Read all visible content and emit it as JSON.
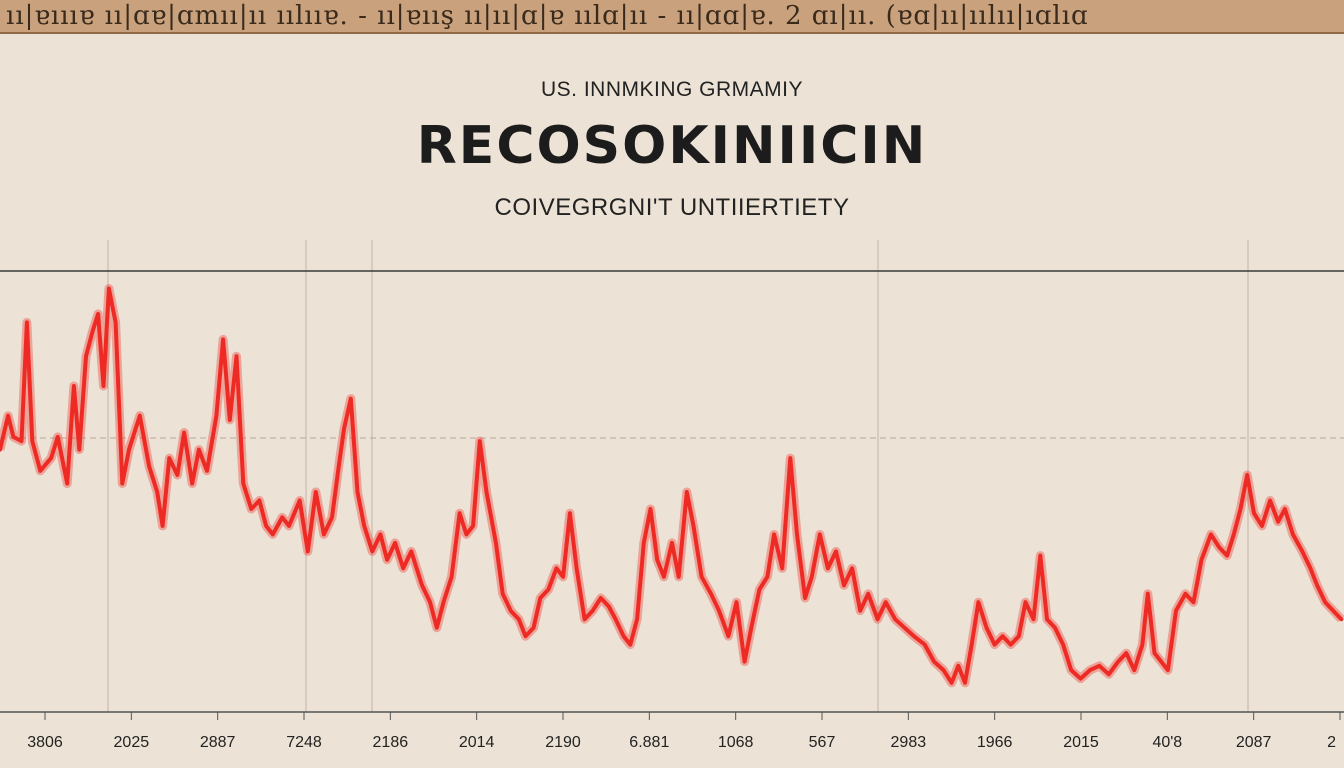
{
  "banner": {
    "text": "ıı|ɐıııɐ ıı|ɑɐ|ɑmıı|ıı ıılııɐ. - ıı|ɐıış ıı|ıı|ɑ|ɐ ıılɑ|ıı - ıı|ɑɑ|ɐ. 2 ɑı|ıı. (ɐɑ|ıı|ıılıı|ıɑlıɑ"
  },
  "supertitle": "US. INNMKING GRMAMIY",
  "title": "RECOSOKINIICIN",
  "subtitle": "COIVEGRGNI'T UNTIIERTIETY",
  "colors": {
    "background": "#ece3d6",
    "banner": "#c9a27d",
    "series": "#ee2a24",
    "axis": "#555555",
    "grid": "#bfb3a3"
  },
  "chart_data": {
    "type": "line",
    "title": "RECOSOKINIICIN",
    "subtitle": "COIVEGRGNI'T UNTIIERTIETY",
    "xlabel": "",
    "ylabel": "",
    "grid": true,
    "x_ticks": [
      "3806",
      "2025",
      "2887",
      "7248",
      "2186",
      "2014",
      "2190",
      "6.881",
      "1068",
      "567",
      "2983",
      "1966",
      "2015",
      "40'8",
      "2087",
      "2"
    ],
    "xlim": [
      0,
      100
    ],
    "ylim": [
      0,
      100
    ],
    "series": [
      {
        "values": [
          [
            0.0,
            60
          ],
          [
            0.6,
            68
          ],
          [
            1.0,
            63
          ],
          [
            1.6,
            62
          ],
          [
            2.0,
            90
          ],
          [
            2.4,
            62
          ],
          [
            3.0,
            55
          ],
          [
            3.8,
            58
          ],
          [
            4.3,
            63
          ],
          [
            5.0,
            52
          ],
          [
            5.5,
            75
          ],
          [
            5.9,
            60
          ],
          [
            6.4,
            82
          ],
          [
            6.9,
            88
          ],
          [
            7.3,
            92
          ],
          [
            7.7,
            75
          ],
          [
            8.1,
            98
          ],
          [
            8.6,
            90
          ],
          [
            9.1,
            52
          ],
          [
            9.6,
            60
          ],
          [
            10.4,
            68
          ],
          [
            11.1,
            56
          ],
          [
            11.7,
            50
          ],
          [
            12.1,
            42
          ],
          [
            12.6,
            58
          ],
          [
            13.2,
            54
          ],
          [
            13.7,
            64
          ],
          [
            14.3,
            52
          ],
          [
            14.8,
            60
          ],
          [
            15.4,
            55
          ],
          [
            16.1,
            68
          ],
          [
            16.6,
            86
          ],
          [
            17.1,
            67
          ],
          [
            17.6,
            82
          ],
          [
            18.1,
            52
          ],
          [
            18.7,
            46
          ],
          [
            19.3,
            48
          ],
          [
            19.8,
            42
          ],
          [
            20.3,
            40
          ],
          [
            21.0,
            44
          ],
          [
            21.5,
            42
          ],
          [
            22.3,
            48
          ],
          [
            22.9,
            36
          ],
          [
            23.5,
            50
          ],
          [
            24.1,
            40
          ],
          [
            24.7,
            44
          ],
          [
            25.2,
            56
          ],
          [
            25.6,
            65
          ],
          [
            26.1,
            72
          ],
          [
            26.6,
            50
          ],
          [
            27.1,
            42
          ],
          [
            27.7,
            36
          ],
          [
            28.3,
            40
          ],
          [
            28.8,
            34
          ],
          [
            29.4,
            38
          ],
          [
            30.0,
            32
          ],
          [
            30.6,
            36
          ],
          [
            31.4,
            28
          ],
          [
            32.0,
            24
          ],
          [
            32.5,
            18
          ],
          [
            33.0,
            24
          ],
          [
            33.6,
            30
          ],
          [
            34.2,
            45
          ],
          [
            34.7,
            40
          ],
          [
            35.2,
            42
          ],
          [
            35.7,
            62
          ],
          [
            36.2,
            50
          ],
          [
            36.9,
            38
          ],
          [
            37.4,
            26
          ],
          [
            38.0,
            22
          ],
          [
            38.6,
            20
          ],
          [
            39.1,
            16
          ],
          [
            39.7,
            18
          ],
          [
            40.2,
            25
          ],
          [
            40.8,
            27
          ],
          [
            41.4,
            32
          ],
          [
            41.9,
            30
          ],
          [
            42.4,
            45
          ],
          [
            42.9,
            32
          ],
          [
            43.5,
            20
          ],
          [
            44.1,
            22
          ],
          [
            44.7,
            25
          ],
          [
            45.3,
            23
          ],
          [
            45.8,
            20
          ],
          [
            46.4,
            16
          ],
          [
            46.9,
            14
          ],
          [
            47.4,
            20
          ],
          [
            47.9,
            38
          ],
          [
            48.4,
            46
          ],
          [
            48.9,
            34
          ],
          [
            49.4,
            30
          ],
          [
            50.0,
            38
          ],
          [
            50.5,
            30
          ],
          [
            51.1,
            50
          ],
          [
            51.6,
            42
          ],
          [
            52.2,
            30
          ],
          [
            52.9,
            26
          ],
          [
            53.5,
            22
          ],
          [
            54.2,
            16
          ],
          [
            54.8,
            24
          ],
          [
            55.4,
            10
          ],
          [
            55.9,
            18
          ],
          [
            56.5,
            27
          ],
          [
            57.1,
            30
          ],
          [
            57.6,
            40
          ],
          [
            58.2,
            32
          ],
          [
            58.8,
            58
          ],
          [
            59.3,
            40
          ],
          [
            59.9,
            25
          ],
          [
            60.4,
            30
          ],
          [
            61.0,
            40
          ],
          [
            61.6,
            32
          ],
          [
            62.2,
            36
          ],
          [
            62.8,
            28
          ],
          [
            63.4,
            32
          ],
          [
            64.0,
            22
          ],
          [
            64.6,
            26
          ],
          [
            65.3,
            20
          ],
          [
            65.9,
            24
          ],
          [
            66.6,
            20
          ],
          [
            67.3,
            18
          ],
          [
            68.0,
            16
          ],
          [
            68.8,
            14
          ],
          [
            69.5,
            10
          ],
          [
            70.2,
            8
          ],
          [
            70.8,
            5
          ],
          [
            71.3,
            9
          ],
          [
            71.8,
            5
          ],
          [
            72.3,
            14
          ],
          [
            72.8,
            24
          ],
          [
            73.4,
            18
          ],
          [
            74.0,
            14
          ],
          [
            74.6,
            16
          ],
          [
            75.2,
            14
          ],
          [
            75.8,
            16
          ],
          [
            76.3,
            24
          ],
          [
            76.9,
            20
          ],
          [
            77.4,
            35
          ],
          [
            77.9,
            20
          ],
          [
            78.5,
            18
          ],
          [
            79.1,
            14
          ],
          [
            79.7,
            8
          ],
          [
            80.4,
            6
          ],
          [
            81.1,
            8
          ],
          [
            81.8,
            9
          ],
          [
            82.5,
            7
          ],
          [
            83.2,
            10
          ],
          [
            83.8,
            12
          ],
          [
            84.4,
            8
          ],
          [
            85.0,
            14
          ],
          [
            85.4,
            26
          ],
          [
            85.9,
            12
          ],
          [
            86.4,
            10
          ],
          [
            86.9,
            8
          ],
          [
            87.5,
            22
          ],
          [
            88.2,
            26
          ],
          [
            88.8,
            24
          ],
          [
            89.4,
            34
          ],
          [
            90.1,
            40
          ],
          [
            90.7,
            37
          ],
          [
            91.3,
            35
          ],
          [
            91.8,
            40
          ],
          [
            92.3,
            46
          ],
          [
            92.8,
            54
          ],
          [
            93.3,
            45
          ],
          [
            93.9,
            42
          ],
          [
            94.5,
            48
          ],
          [
            95.1,
            43
          ],
          [
            95.6,
            46
          ],
          [
            96.2,
            40
          ],
          [
            96.9,
            36
          ],
          [
            97.5,
            32
          ],
          [
            98.0,
            28
          ],
          [
            98.6,
            24
          ],
          [
            99.2,
            22
          ],
          [
            99.8,
            20
          ]
        ]
      }
    ]
  }
}
